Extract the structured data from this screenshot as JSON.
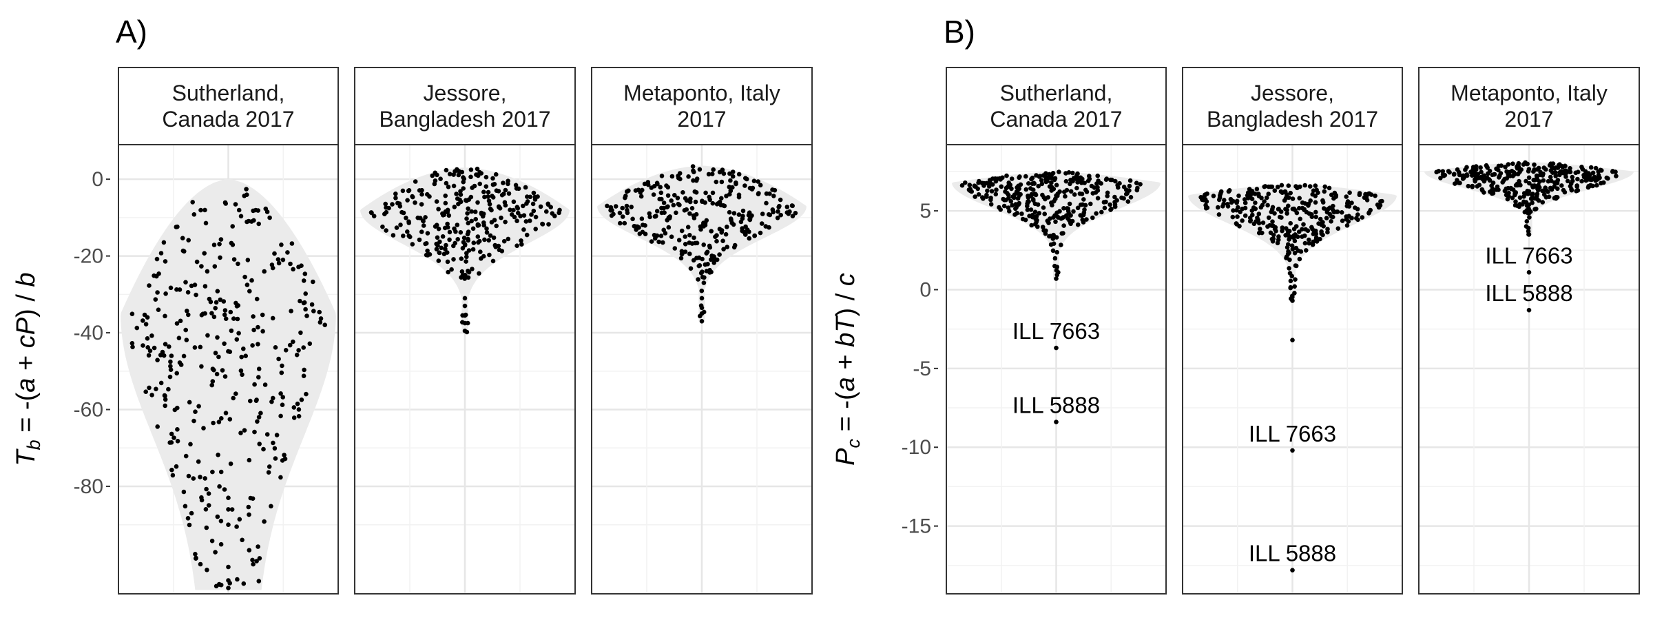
{
  "chart_data": [
    {
      "type": "scatter",
      "subtype": "violin-beeswarm",
      "panel_label": "A)",
      "ylabel_parts": [
        "T",
        "b",
        " = -(",
        "a",
        " + ",
        "cP",
        ") / ",
        "b"
      ],
      "ylim": [
        -108,
        9
      ],
      "yticks": [
        0,
        -20,
        -40,
        -60,
        -80
      ],
      "ytick_labels": [
        "0",
        "-20",
        "-40",
        "-60",
        "-80"
      ],
      "grid": true,
      "facets": [
        {
          "label_lines": [
            "Sutherland,",
            "Canada 2017"
          ],
          "n_points": 340,
          "range": [
            -107,
            0
          ],
          "mode": -35,
          "outliers": [
            -106.5,
            -104.5,
            -101,
            -90,
            -86,
            -83
          ],
          "annotations": []
        },
        {
          "label_lines": [
            "Jessore,",
            "Bangladesh 2017"
          ],
          "n_points": 300,
          "range": [
            -40,
            3
          ],
          "mode": -8,
          "outliers": [
            -39.5,
            -37.5,
            -35.5,
            -33,
            -31
          ],
          "annotations": []
        },
        {
          "label_lines": [
            "Metaponto, Italy",
            "2017"
          ],
          "n_points": 300,
          "range": [
            -37,
            3.5
          ],
          "mode": -7,
          "outliers": [
            -37,
            -35,
            -33.5,
            -31
          ],
          "annotations": []
        }
      ]
    },
    {
      "type": "scatter",
      "subtype": "violin-beeswarm",
      "panel_label": "B)",
      "ylabel_parts": [
        "P",
        "c",
        " = -(",
        "a",
        " + ",
        "bT",
        ") / ",
        "c"
      ],
      "ylim": [
        -19.3,
        9.2
      ],
      "yticks": [
        5,
        0,
        -5,
        -10,
        -15
      ],
      "ytick_labels": [
        "5",
        "0",
        "-5",
        "-10",
        "-15"
      ],
      "grid": true,
      "facets": [
        {
          "label_lines": [
            "Sutherland,",
            "Canada 2017"
          ],
          "n_points": 320,
          "range": [
            0.7,
            7.5
          ],
          "mode": 6.8,
          "outliers": [
            0.7,
            -3.7,
            -8.4
          ],
          "annotations": [
            {
              "text": "ILL 7663",
              "y": -3.7
            },
            {
              "text": "ILL 5888",
              "y": -8.4
            }
          ]
        },
        {
          "label_lines": [
            "Jessore,",
            "Bangladesh 2017"
          ],
          "n_points": 320,
          "range": [
            -0.7,
            6.7
          ],
          "mode": 6.0,
          "outliers": [
            -0.7,
            -3.2,
            -10.2,
            -17.8
          ],
          "annotations": [
            {
              "text": "ILL 7663",
              "y": -10.2
            },
            {
              "text": "ILL 5888",
              "y": -17.8
            }
          ]
        },
        {
          "label_lines": [
            "Metaponto, Italy",
            "2017"
          ],
          "n_points": 340,
          "range": [
            3.5,
            8.1
          ],
          "mode": 7.5,
          "outliers": [
            3.5,
            1.1,
            -1.3
          ],
          "annotations": [
            {
              "text": "ILL 7663",
              "y": 1.1
            },
            {
              "text": "ILL 5888",
              "y": -1.3
            }
          ]
        }
      ]
    }
  ]
}
